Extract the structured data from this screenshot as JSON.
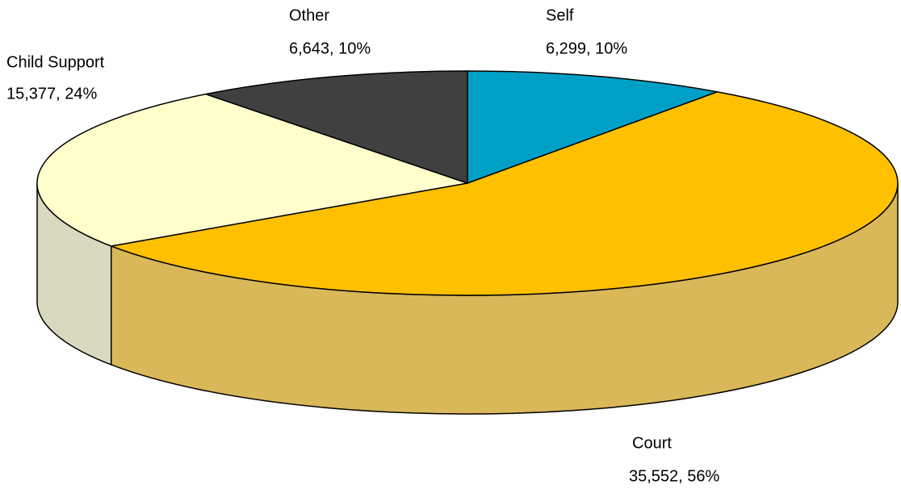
{
  "chart_data": {
    "type": "pie3d",
    "categories": [
      "Self",
      "Court",
      "Child Support",
      "Other"
    ],
    "values": [
      6299,
      35552,
      15377,
      6643
    ],
    "value_labels": [
      "6,299, 10%",
      "35,552, 56%",
      "15,377, 24%",
      "6,643, 10%"
    ],
    "colors": [
      "#00a0c6",
      "#ffc000",
      "#ffffcc",
      "#404040"
    ],
    "side_colors": [
      "#0088a8",
      "#d9b85a",
      "#d9d9c0",
      "#333333"
    ]
  }
}
